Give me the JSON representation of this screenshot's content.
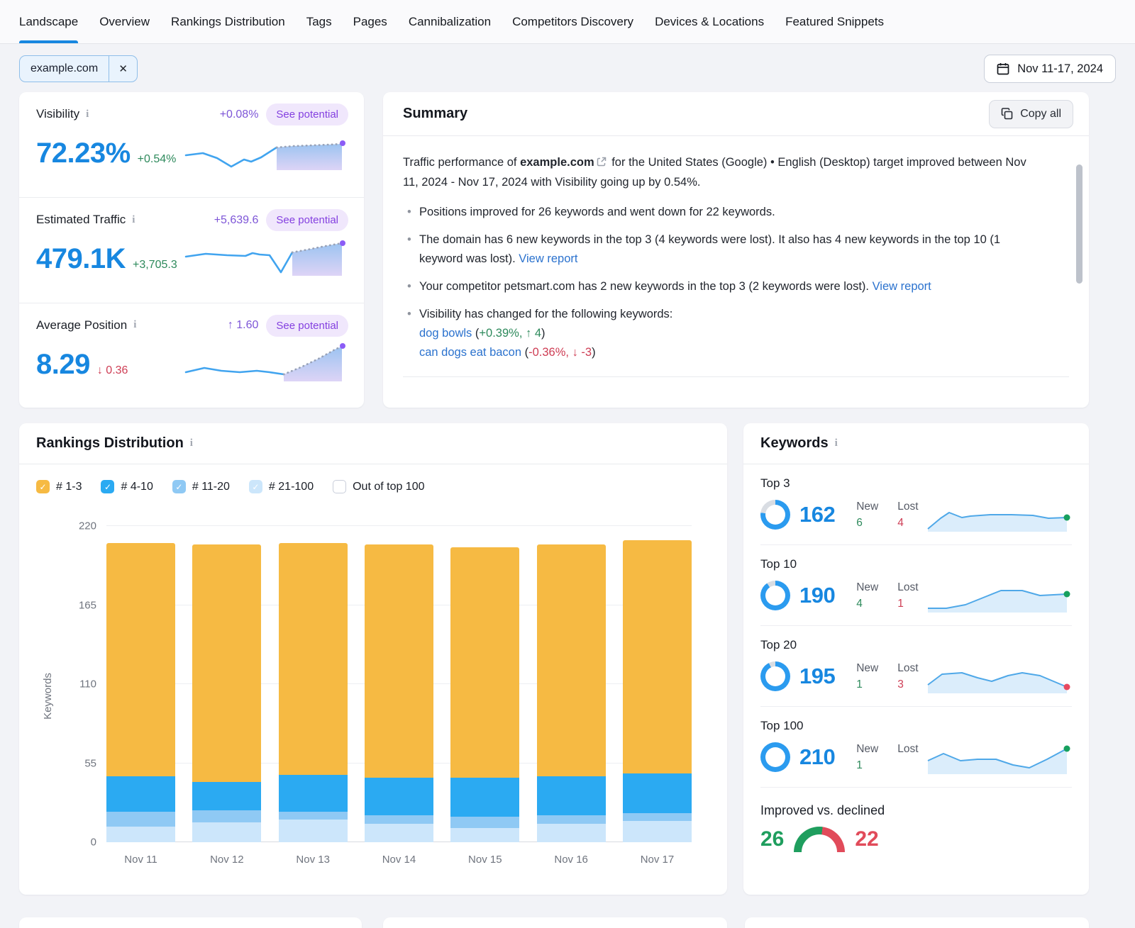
{
  "colors": {
    "accent_blue": "#1787E0",
    "link_blue": "#2B72CE",
    "green": "#2E8A5C",
    "red": "#CE3D54",
    "purple": "#7D55D7",
    "pill_bg": "#F0E7FC",
    "bar_1_3": "#F6BA43",
    "bar_4_10": "#2BAAF2",
    "bar_11_20": "#8FC9F4",
    "bar_21_100": "#CCE6FB"
  },
  "nav": {
    "tabs": [
      {
        "label": "Landscape",
        "active": true
      },
      {
        "label": "Overview"
      },
      {
        "label": "Rankings Distribution"
      },
      {
        "label": "Tags"
      },
      {
        "label": "Pages"
      },
      {
        "label": "Cannibalization"
      },
      {
        "label": "Competitors Discovery"
      },
      {
        "label": "Devices & Locations"
      },
      {
        "label": "Featured Snippets"
      }
    ]
  },
  "filters": {
    "domain_chip": "example.com",
    "date_range": "Nov 11-17, 2024"
  },
  "metrics": [
    {
      "name": "Visibility",
      "potential": "+0.08%",
      "see_potential": "See potential",
      "value": "72.23%",
      "delta": "+0.54%",
      "spark": {
        "solid": [
          [
            8,
            37
          ],
          [
            32,
            34
          ],
          [
            52,
            41
          ],
          [
            72,
            53
          ],
          [
            90,
            43
          ],
          [
            100,
            46
          ],
          [
            114,
            40
          ],
          [
            136,
            26
          ]
        ],
        "dashed": [
          [
            136,
            26
          ],
          [
            160,
            24
          ],
          [
            185,
            23
          ],
          [
            210,
            22
          ],
          [
            228,
            21
          ]
        ],
        "dot": [
          229,
          20
        ]
      }
    },
    {
      "name": "Estimated Traffic",
      "potential": "+5,639.6",
      "see_potential": "See potential",
      "value": "479.1K",
      "delta": "+3,705.3",
      "spark": {
        "solid": [
          [
            8,
            31
          ],
          [
            36,
            27
          ],
          [
            66,
            29
          ],
          [
            92,
            30
          ],
          [
            102,
            26
          ],
          [
            112,
            28
          ],
          [
            126,
            29
          ],
          [
            142,
            53
          ],
          [
            158,
            25
          ]
        ],
        "dashed": [
          [
            158,
            25
          ],
          [
            180,
            21
          ],
          [
            205,
            16
          ],
          [
            228,
            12
          ]
        ],
        "dot": [
          229,
          12
        ]
      }
    },
    {
      "name": "Average Position",
      "potential": "↑ 1.60",
      "see_potential": "See potential",
      "value": "8.29",
      "delta": "↓ 0.36",
      "spark": {
        "solid": [
          [
            8,
            45
          ],
          [
            34,
            39
          ],
          [
            58,
            43
          ],
          [
            84,
            45
          ],
          [
            108,
            43
          ],
          [
            126,
            45
          ],
          [
            146,
            48
          ]
        ],
        "dashed": [
          [
            146,
            48
          ],
          [
            170,
            38
          ],
          [
            195,
            26
          ],
          [
            220,
            12
          ],
          [
            228,
            9
          ]
        ],
        "dot": [
          229,
          8
        ]
      }
    }
  ],
  "summary": {
    "title": "Summary",
    "copy_all": "Copy all",
    "intro_prefix": "Traffic performance of ",
    "intro_domain": "example.com",
    "intro_suffix": " for the United States (Google) • English (Desktop) target improved between Nov 11, 2024 - Nov 17, 2024 with Visibility going up by 0.54%.",
    "bullet_1": "Positions improved for 26 keywords and went down for 22 keywords.",
    "bullet_2_text": "The domain has 6 new keywords in the top 3 (4 keywords were lost). It also has 4 new keywords in the top 10 (1 keyword was lost). ",
    "bullet_2_link": "View report",
    "bullet_3_text": "Your competitor petsmart.com has 2 new keywords in the top 3 (2 keywords were lost). ",
    "bullet_3_link": "View report",
    "bullet_4_text": "Visibility has changed for the following keywords:",
    "kw_1_link": "dog bowls",
    "kw_1_open": "(",
    "kw_1_change": "+0.39%, ↑ 4",
    "kw_1_close": ")",
    "kw_2_link": "can dogs eat bacon",
    "kw_2_open": "(",
    "kw_2_change": "-0.36%, ↓ -3",
    "kw_2_close": ")"
  },
  "rankings": {
    "title": "Rankings Distribution",
    "ylabel": "Keywords",
    "legend": [
      {
        "label": "# 1-3",
        "color": "#F6BA43",
        "checked": true
      },
      {
        "label": "# 4-10",
        "color": "#2BAAF2",
        "checked": true
      },
      {
        "label": "# 11-20",
        "color": "#8FC9F4",
        "checked": true
      },
      {
        "label": "# 21-100",
        "color": "#CCE6FB",
        "checked": true
      },
      {
        "label": "Out of top 100",
        "color": null,
        "checked": false
      }
    ]
  },
  "chart_data": {
    "type": "bar",
    "stacked": true,
    "title": "Rankings Distribution",
    "categories": [
      "Nov 11",
      "Nov 12",
      "Nov 13",
      "Nov 14",
      "Nov 15",
      "Nov 16",
      "Nov 17"
    ],
    "series": [
      {
        "name": "# 21-100",
        "color": "#CCE6FB",
        "values": [
          11,
          14,
          16,
          13,
          10,
          13,
          15
        ]
      },
      {
        "name": "# 11-20",
        "color": "#8FC9F4",
        "values": [
          10,
          8,
          5,
          6,
          8,
          6,
          5
        ]
      },
      {
        "name": "# 4-10",
        "color": "#2BAAF2",
        "values": [
          25,
          20,
          26,
          26,
          27,
          27,
          28
        ]
      },
      {
        "name": "# 1-3",
        "color": "#F6BA43",
        "values": [
          162,
          165,
          161,
          162,
          160,
          161,
          162
        ]
      }
    ],
    "ylabel": "Keywords",
    "ylim": [
      0,
      220
    ],
    "yticks": [
      0,
      55,
      110,
      165,
      220
    ],
    "grid": true,
    "legend_position": "top"
  },
  "keywords_panel": {
    "title": "Keywords",
    "new_label": "New",
    "lost_label": "Lost",
    "rows": [
      {
        "label": "Top 3",
        "value": 162,
        "new": "6",
        "lost": "4",
        "dot": "#17A05E",
        "spark": [
          [
            2,
            46
          ],
          [
            20,
            31
          ],
          [
            32,
            23
          ],
          [
            50,
            30
          ],
          [
            62,
            28
          ],
          [
            90,
            26
          ],
          [
            120,
            26
          ],
          [
            150,
            27
          ],
          [
            172,
            31
          ],
          [
            198,
            30
          ]
        ]
      },
      {
        "label": "Top 10",
        "value": 190,
        "new": "4",
        "lost": "1",
        "dot": "#17A05E",
        "spark": [
          [
            2,
            44
          ],
          [
            28,
            44
          ],
          [
            55,
            39
          ],
          [
            85,
            27
          ],
          [
            105,
            19
          ],
          [
            135,
            19
          ],
          [
            160,
            26
          ],
          [
            198,
            24
          ]
        ]
      },
      {
        "label": "Top 20",
        "value": 195,
        "new": "1",
        "lost": "3",
        "dot": "#E8495F",
        "spark": [
          [
            2,
            38
          ],
          [
            22,
            23
          ],
          [
            50,
            21
          ],
          [
            72,
            28
          ],
          [
            92,
            33
          ],
          [
            115,
            25
          ],
          [
            135,
            21
          ],
          [
            160,
            25
          ],
          [
            198,
            41
          ]
        ]
      },
      {
        "label": "Top 100",
        "value": 210,
        "new": "1",
        "lost": "",
        "dot": "#17A05E",
        "spark": [
          [
            2,
            31
          ],
          [
            24,
            21
          ],
          [
            48,
            31
          ],
          [
            72,
            29
          ],
          [
            98,
            29
          ],
          [
            122,
            37
          ],
          [
            145,
            41
          ],
          [
            170,
            29
          ],
          [
            198,
            14
          ]
        ]
      }
    ],
    "improved_vs_declined": {
      "label": "Improved vs. declined",
      "improved": 26,
      "declined": 22,
      "improved_color": "#1F9E5E",
      "declined_color": "#E14B5A"
    }
  }
}
